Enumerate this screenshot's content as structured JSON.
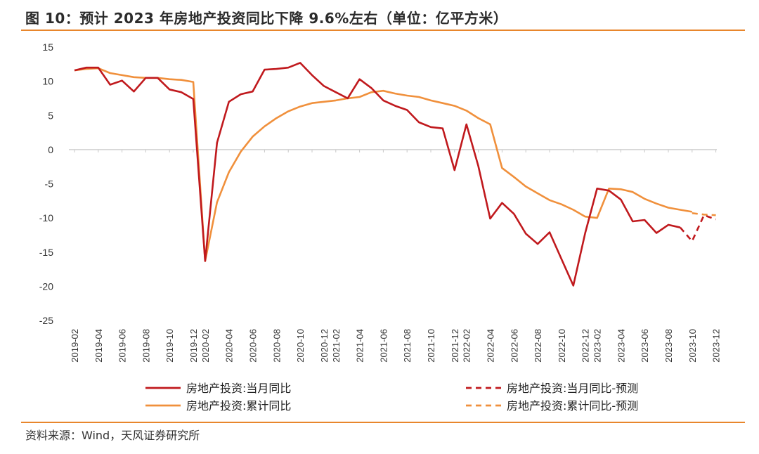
{
  "title": "图 10：预计 2023 年房地产投资同比下降 9.6%左右（单位：亿平方米）",
  "source": "资料来源：Wind，天风证券研究所",
  "colors": {
    "monthly": "#c0191d",
    "cumulative": "#f0903c",
    "accent_rule": "#e8862c"
  },
  "chart_data": {
    "type": "line",
    "title": "预计 2023 年房地产投资同比下降 9.6%左右（单位：亿平方米）",
    "xlabel": "",
    "ylabel": "",
    "ylim": [
      -25,
      15
    ],
    "yticks": [
      15,
      10,
      5,
      0,
      -5,
      -10,
      -15,
      -20,
      -25
    ],
    "x": [
      "2019-02",
      "2019-03",
      "2019-04",
      "2019-05",
      "2019-06",
      "2019-07",
      "2019-08",
      "2019-09",
      "2019-10",
      "2019-11",
      "2019-12",
      "2020-02",
      "2020-03",
      "2020-04",
      "2020-05",
      "2020-06",
      "2020-07",
      "2020-08",
      "2020-09",
      "2020-10",
      "2020-11",
      "2020-12",
      "2021-02",
      "2021-03",
      "2021-04",
      "2021-05",
      "2021-06",
      "2021-07",
      "2021-08",
      "2021-09",
      "2021-10",
      "2021-11",
      "2021-12",
      "2022-02",
      "2022-03",
      "2022-04",
      "2022-05",
      "2022-06",
      "2022-07",
      "2022-08",
      "2022-09",
      "2022-10",
      "2022-11",
      "2022-12",
      "2023-02",
      "2023-03",
      "2023-04",
      "2023-05",
      "2023-06",
      "2023-07",
      "2023-08",
      "2023-09",
      "2023-10",
      "2023-11",
      "2023-12"
    ],
    "xtick_labels": [
      "2019-02",
      "2019-04",
      "2019-06",
      "2019-08",
      "2019-10",
      "2019-12",
      "2020-02",
      "2020-04",
      "2020-06",
      "2020-08",
      "2020-10",
      "2020-12",
      "2021-02",
      "2021-04",
      "2021-06",
      "2021-08",
      "2021-10",
      "2021-12",
      "2022-02",
      "2022-04",
      "2022-06",
      "2022-08",
      "2022-10",
      "2022-12",
      "2023-02",
      "2023-04",
      "2023-06",
      "2023-08",
      "2023-10",
      "2023-12"
    ],
    "series": [
      {
        "name": "房地产投资:当月同比",
        "style": "solid",
        "color": "#c0191d",
        "values": [
          11.6,
          12.0,
          12.0,
          9.5,
          10.1,
          8.5,
          10.5,
          10.5,
          8.8,
          8.4,
          7.4,
          -16.3,
          1.0,
          7.0,
          8.1,
          8.5,
          11.7,
          11.8,
          12.0,
          12.7,
          10.9,
          9.3,
          8.4,
          7.5,
          10.3,
          9.0,
          7.2,
          6.4,
          5.8,
          4.0,
          3.3,
          3.1,
          -3.0,
          3.7,
          -2.4,
          -10.1,
          -7.8,
          -9.4,
          -12.3,
          -13.8,
          -12.1,
          -16.0,
          -19.9,
          -12.2,
          -5.7,
          -6.0,
          -7.3,
          -10.5,
          -10.3,
          -12.2,
          -11.0,
          -11.4,
          null,
          null,
          null
        ]
      },
      {
        "name": "房地产投资:累计同比",
        "style": "solid",
        "color": "#f0903c",
        "values": [
          11.6,
          11.8,
          11.9,
          11.2,
          10.9,
          10.6,
          10.5,
          10.5,
          10.3,
          10.2,
          9.9,
          -16.3,
          -7.7,
          -3.3,
          -0.3,
          1.9,
          3.4,
          4.6,
          5.6,
          6.3,
          6.8,
          7.0,
          7.2,
          7.5,
          7.7,
          8.4,
          8.6,
          8.2,
          7.9,
          7.7,
          7.2,
          6.8,
          6.4,
          5.7,
          4.6,
          3.7,
          -2.7,
          -4.0,
          -5.4,
          -6.4,
          -7.4,
          -8.0,
          -8.8,
          -9.8,
          -10.0,
          -5.7,
          -5.8,
          -6.2,
          -7.2,
          -7.9,
          -8.5,
          -8.8,
          -9.1,
          null,
          null
        ]
      },
      {
        "name": "房地产投资:当月同比-预测",
        "style": "dashed",
        "color": "#c0191d",
        "values": [
          null,
          null,
          null,
          null,
          null,
          null,
          null,
          null,
          null,
          null,
          null,
          null,
          null,
          null,
          null,
          null,
          null,
          null,
          null,
          null,
          null,
          null,
          null,
          null,
          null,
          null,
          null,
          null,
          null,
          null,
          null,
          null,
          null,
          null,
          null,
          null,
          null,
          null,
          null,
          null,
          null,
          null,
          null,
          null,
          null,
          null,
          null,
          null,
          null,
          null,
          null,
          -11.4,
          -13.4,
          -9.6,
          -10.2
        ]
      },
      {
        "name": "房地产投资:累计同比-预测",
        "style": "dashed",
        "color": "#f0903c",
        "values": [
          null,
          null,
          null,
          null,
          null,
          null,
          null,
          null,
          null,
          null,
          null,
          null,
          null,
          null,
          null,
          null,
          null,
          null,
          null,
          null,
          null,
          null,
          null,
          null,
          null,
          null,
          null,
          null,
          null,
          null,
          null,
          null,
          null,
          null,
          null,
          null,
          null,
          null,
          null,
          null,
          null,
          null,
          null,
          null,
          null,
          null,
          null,
          null,
          null,
          null,
          null,
          null,
          -9.3,
          -9.5,
          -9.6
        ]
      }
    ],
    "legend": [
      {
        "label": "房地产投资:当月同比",
        "series": 0
      },
      {
        "label": "房地产投资:当月同比-预测",
        "series": 2
      },
      {
        "label": "房地产投资:累计同比",
        "series": 1
      },
      {
        "label": "房地产投资:累计同比-预测",
        "series": 3
      }
    ],
    "legend_position": "bottom"
  }
}
